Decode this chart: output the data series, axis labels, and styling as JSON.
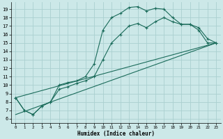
{
  "xlabel": "Humidex (Indice chaleur)",
  "bg_color": "#cce8e8",
  "grid_color": "#aad0d0",
  "line_color": "#1a6b5a",
  "xlim": [
    -0.5,
    23.5
  ],
  "ylim": [
    5.5,
    19.8
  ],
  "xticks": [
    0,
    1,
    2,
    3,
    4,
    5,
    6,
    7,
    8,
    9,
    10,
    11,
    12,
    13,
    14,
    15,
    16,
    17,
    18,
    19,
    20,
    21,
    22,
    23
  ],
  "yticks": [
    6,
    7,
    8,
    9,
    10,
    11,
    12,
    13,
    14,
    15,
    16,
    17,
    18,
    19
  ],
  "line1_x": [
    0,
    1,
    2,
    3,
    4,
    5,
    6,
    7,
    8,
    9,
    10,
    11,
    12,
    13,
    14,
    15,
    16,
    17,
    18,
    19,
    20,
    21,
    22,
    23
  ],
  "line1_y": [
    8.5,
    7.0,
    6.5,
    7.5,
    8.0,
    10.0,
    10.3,
    10.5,
    11.0,
    12.5,
    16.5,
    18.0,
    18.5,
    19.2,
    19.3,
    18.8,
    19.1,
    19.0,
    18.0,
    17.2,
    17.2,
    16.8,
    15.5,
    15.0
  ],
  "line2_x": [
    0,
    1,
    2,
    3,
    4,
    5,
    6,
    7,
    8,
    9,
    10,
    11,
    12,
    13,
    14,
    15,
    16,
    17,
    18,
    19,
    20,
    21,
    22,
    23
  ],
  "line2_y": [
    8.5,
    7.0,
    6.5,
    7.5,
    8.0,
    9.5,
    9.8,
    10.2,
    10.5,
    11.0,
    13.0,
    15.0,
    16.0,
    17.0,
    17.3,
    16.8,
    17.5,
    18.0,
    17.5,
    17.2,
    17.2,
    16.5,
    15.0,
    15.0
  ],
  "line3_x": [
    0,
    23
  ],
  "line3_y": [
    6.5,
    15.0
  ],
  "line4_x": [
    0,
    23
  ],
  "line4_y": [
    8.5,
    15.0
  ]
}
